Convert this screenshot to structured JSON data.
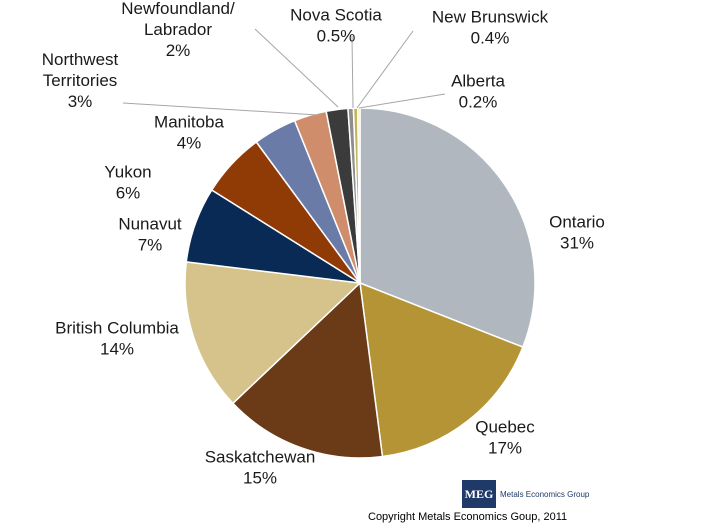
{
  "chart_data": {
    "type": "pie",
    "title": "",
    "slices": [
      {
        "name": "Ontario",
        "value": 31,
        "label": "31%",
        "color": "#b1b7bf"
      },
      {
        "name": "Quebec",
        "value": 17,
        "label": "17%",
        "color": "#b49435"
      },
      {
        "name": "Saskatchewan",
        "value": 15,
        "label": "15%",
        "color": "#6b3a17"
      },
      {
        "name": "British Columbia",
        "value": 14,
        "label": "14%",
        "color": "#d6c38b"
      },
      {
        "name": "Nunavut",
        "value": 7,
        "label": "7%",
        "color": "#082a55"
      },
      {
        "name": "Yukon",
        "value": 6,
        "label": "6%",
        "color": "#903b06"
      },
      {
        "name": "Manitoba",
        "value": 4,
        "label": "4%",
        "color": "#6a7ba8"
      },
      {
        "name": "Northwest Territories",
        "value": 3,
        "label": "3%",
        "color": "#cf8d6c"
      },
      {
        "name": "Newfoundland/ Labrador",
        "value": 2,
        "label": "2%",
        "color": "#3b3b3b"
      },
      {
        "name": "Nova Scotia",
        "value": 0.5,
        "label": "0.5%",
        "color": "#8e8e8e"
      },
      {
        "name": "New Brunswick",
        "value": 0.4,
        "label": "0.4%",
        "color": "#c5b35a"
      },
      {
        "name": "Alberta",
        "value": 0.2,
        "label": "0.2%",
        "color": "#dfe58f"
      }
    ]
  },
  "labels": [
    {
      "lines": [
        "Ontario",
        "31%"
      ]
    },
    {
      "lines": [
        "Quebec",
        "17%"
      ]
    },
    {
      "lines": [
        "Saskatchewan",
        "15%"
      ]
    },
    {
      "lines": [
        "British Columbia",
        "14%"
      ]
    },
    {
      "lines": [
        "Nunavut",
        "7%"
      ]
    },
    {
      "lines": [
        "Yukon",
        "6%"
      ]
    },
    {
      "lines": [
        "Manitoba",
        "4%"
      ]
    },
    {
      "lines": [
        "Northwest",
        "Territories",
        "3%"
      ]
    },
    {
      "lines": [
        "Newfoundland/",
        "Labrador",
        "2%"
      ]
    },
    {
      "lines": [
        "Nova Scotia",
        "0.5%"
      ]
    },
    {
      "lines": [
        "New Brunswick",
        "0.4%"
      ]
    },
    {
      "lines": [
        "Alberta",
        "0.2%"
      ]
    }
  ],
  "logo": {
    "abbr": "MEG",
    "name": "Metals Economics Group"
  },
  "copyright": "Copyright Metals Economics Goup, 2011"
}
